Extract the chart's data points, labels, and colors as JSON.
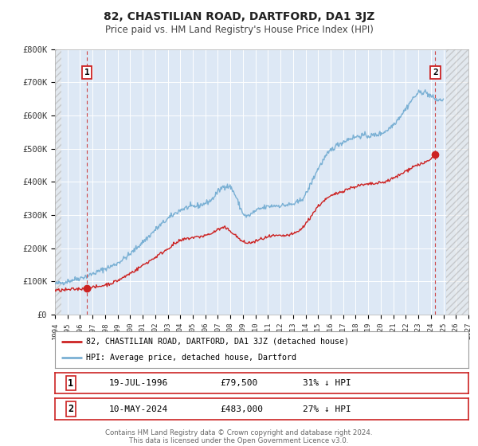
{
  "title": "82, CHASTILIAN ROAD, DARTFORD, DA1 3JZ",
  "subtitle": "Price paid vs. HM Land Registry's House Price Index (HPI)",
  "background_color": "#dde8f5",
  "ylim": [
    0,
    800000
  ],
  "xlim_start": 1994,
  "xlim_end": 2027,
  "yticks": [
    0,
    100000,
    200000,
    300000,
    400000,
    500000,
    600000,
    700000,
    800000
  ],
  "ytick_labels": [
    "£0",
    "£100K",
    "£200K",
    "£300K",
    "£400K",
    "£500K",
    "£600K",
    "£700K",
    "£800K"
  ],
  "xticks": [
    1994,
    1995,
    1996,
    1997,
    1998,
    1999,
    2000,
    2001,
    2002,
    2003,
    2004,
    2005,
    2006,
    2007,
    2008,
    2009,
    2010,
    2011,
    2012,
    2013,
    2014,
    2015,
    2016,
    2017,
    2018,
    2019,
    2020,
    2021,
    2022,
    2023,
    2024,
    2025,
    2026,
    2027
  ],
  "red_line_color": "#cc2222",
  "blue_line_color": "#7ab0d4",
  "marker_color": "#cc2222",
  "dashed_line_color": "#cc4444",
  "point1_x": 1996.55,
  "point1_y": 79500,
  "point1_label": "1",
  "point2_x": 2024.36,
  "point2_y": 483000,
  "point2_label": "2",
  "legend_label_red": "82, CHASTILIAN ROAD, DARTFORD, DA1 3JZ (detached house)",
  "legend_label_blue": "HPI: Average price, detached house, Dartford",
  "annotation1_date": "19-JUL-1996",
  "annotation1_price": "£79,500",
  "annotation1_hpi": "31% ↓ HPI",
  "annotation2_date": "10-MAY-2024",
  "annotation2_price": "£483,000",
  "annotation2_hpi": "27% ↓ HPI",
  "footer_line1": "Contains HM Land Registry data © Crown copyright and database right 2024.",
  "footer_line2": "This data is licensed under the Open Government Licence v3.0."
}
